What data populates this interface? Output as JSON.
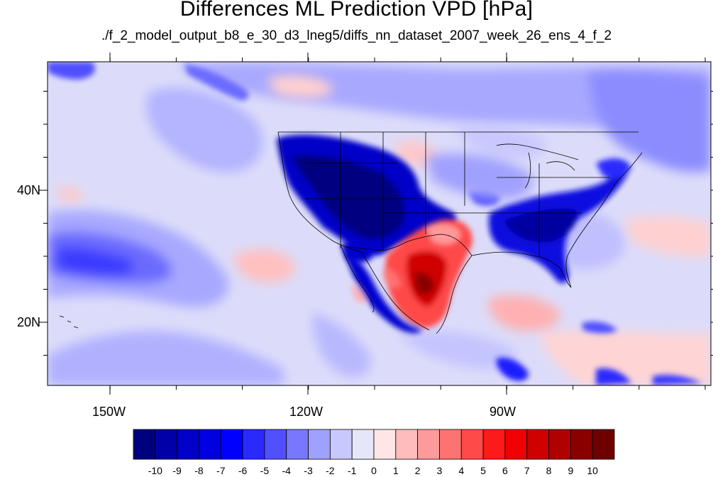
{
  "title": "Differences ML Prediction VPD [hPa]",
  "subtitle": "./f_2_model_output_b8_e_30_d3_lneg5/diffs_nn_dataset_2007_week_26_ens_4_f_2",
  "lon_labels": [
    "150W",
    "120W",
    "90W"
  ],
  "lat_labels": [
    "40N",
    "20N"
  ],
  "colorbar": {
    "labels": [
      "-10",
      "-9",
      "-8",
      "-7",
      "-6",
      "-5",
      "-4",
      "-3",
      "-2",
      "-1",
      "0",
      "1",
      "2",
      "3",
      "4",
      "5",
      "6",
      "7",
      "8",
      "9",
      "10"
    ],
    "colors": [
      "#00007f",
      "#0000a8",
      "#0000c8",
      "#0000e0",
      "#0000ff",
      "#2a2aff",
      "#5050ff",
      "#7878ff",
      "#a0a0ff",
      "#c8c8ff",
      "#e6e6fa",
      "#ffe6e6",
      "#ffbcbc",
      "#ff9a9a",
      "#ff7272",
      "#ff4a4a",
      "#ff1a1a",
      "#f00000",
      "#d00000",
      "#b00000",
      "#8a0000",
      "#6e0000"
    ]
  }
}
